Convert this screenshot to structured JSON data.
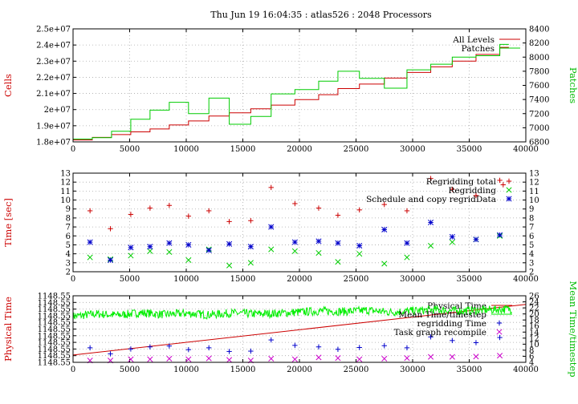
{
  "title": "Thu Jun 19 16:04:35 : atlas526 : 2048 Processors",
  "chart_data": [
    {
      "type": "line",
      "ylabel": "Cells",
      "y2label": "Patches",
      "xlim": [
        0,
        40000
      ],
      "ylim": [
        18000000,
        25000000
      ],
      "y2lim": [
        6800,
        8400
      ],
      "x_ticks": [
        "0",
        "5000",
        "10000",
        "15000",
        "20000",
        "25000",
        "30000",
        "35000",
        "40000"
      ],
      "y_ticks": [
        "1.8e+07",
        "1.9e+07",
        "2e+07",
        "2.1e+07",
        "2.2e+07",
        "2.3e+07",
        "2.4e+07",
        "2.5e+07"
      ],
      "y2_ticks": [
        "6800",
        "7000",
        "7200",
        "7400",
        "7600",
        "7800",
        "8000",
        "8200",
        "8400"
      ],
      "grid": "dotted",
      "legend": "top-right",
      "series": [
        {
          "name": "All Levels",
          "color": "#cc0000",
          "axis": "left",
          "step": true,
          "x": [
            0,
            1700,
            3400,
            5100,
            6800,
            8500,
            10200,
            12000,
            13800,
            15700,
            17500,
            19600,
            21700,
            23400,
            25300,
            27500,
            29500,
            31600,
            33500,
            35600,
            37700,
            38500
          ],
          "y": [
            18120000,
            18280000,
            18450000,
            18620000,
            18800000,
            19050000,
            19300000,
            19600000,
            19800000,
            20050000,
            20280000,
            20620000,
            20920000,
            21300000,
            21580000,
            21950000,
            22300000,
            22650000,
            23000000,
            23420000,
            23850000,
            23850000
          ]
        },
        {
          "name": "Patches",
          "color": "#00cc00",
          "axis": "right",
          "step": true,
          "x": [
            0,
            1700,
            3400,
            5100,
            6800,
            8500,
            10200,
            12000,
            13800,
            15700,
            17500,
            19600,
            21700,
            23400,
            25300,
            27500,
            29500,
            31600,
            33500,
            35600,
            37700,
            38500
          ],
          "y": [
            6840,
            6860,
            6950,
            7120,
            7250,
            7360,
            7200,
            7420,
            7050,
            7160,
            7480,
            7540,
            7660,
            7800,
            7700,
            7560,
            7820,
            7900,
            8000,
            8020,
            8180,
            8180
          ]
        }
      ]
    },
    {
      "type": "scatter",
      "ylabel": "Time [sec]",
      "xlim": [
        0,
        40000
      ],
      "ylim": [
        2,
        13
      ],
      "y2lim": [
        2,
        13
      ],
      "x_ticks": [
        "0",
        "5000",
        "10000",
        "15000",
        "20000",
        "25000",
        "30000",
        "35000",
        "40000"
      ],
      "y_ticks": [
        "2",
        "3",
        "4",
        "5",
        "6",
        "7",
        "8",
        "9",
        "10",
        "11",
        "12",
        "13"
      ],
      "y2_ticks": [
        "2",
        "3",
        "4",
        "5",
        "6",
        "7",
        "8",
        "9",
        "10",
        "11",
        "12",
        "13"
      ],
      "grid": "dotted",
      "legend": "top-right",
      "series": [
        {
          "name": "Regridding total",
          "color": "#cc0000",
          "marker": "plus",
          "x": [
            1500,
            3300,
            5100,
            6800,
            8500,
            10200,
            12000,
            13800,
            15700,
            17500,
            19600,
            21700,
            23400,
            25300,
            27500,
            29500,
            31600,
            33500,
            35600,
            37700,
            38000
          ],
          "y": [
            8.8,
            6.8,
            8.4,
            9.1,
            9.4,
            8.2,
            8.8,
            7.6,
            7.7,
            11.4,
            9.6,
            9.1,
            8.3,
            8.9,
            9.5,
            8.8,
            12.4,
            11.2,
            10.5,
            12.2,
            11.7
          ]
        },
        {
          "name": "Regridding",
          "color": "#00cc00",
          "marker": "x",
          "x": [
            1500,
            3300,
            5100,
            6800,
            8500,
            10200,
            12000,
            13800,
            15700,
            17500,
            19600,
            21700,
            23400,
            25300,
            27500,
            29500,
            31600,
            33500,
            35600,
            37700
          ],
          "y": [
            3.6,
            3.4,
            3.8,
            4.3,
            4.2,
            3.3,
            4.5,
            2.7,
            3.0,
            4.5,
            4.3,
            4.1,
            3.1,
            4.0,
            2.9,
            3.6,
            4.9,
            5.3,
            5.6,
            6.0
          ]
        },
        {
          "name": "Schedule and copy regridData",
          "color": "#0000cc",
          "marker": "star",
          "x": [
            1500,
            3300,
            5100,
            6800,
            8500,
            10200,
            12000,
            13800,
            15700,
            17500,
            19600,
            21700,
            23400,
            25300,
            27500,
            29500,
            31600,
            33500,
            35600,
            37700
          ],
          "y": [
            5.3,
            3.3,
            4.7,
            4.8,
            5.2,
            5.0,
            4.4,
            5.1,
            4.8,
            7.0,
            5.3,
            5.4,
            5.2,
            4.9,
            6.7,
            5.2,
            7.5,
            5.9,
            5.6,
            6.1
          ]
        }
      ]
    },
    {
      "type": "line",
      "ylabel": "Physical Time",
      "y2label": "Mean Time/timestep",
      "xlim": [
        0,
        40000
      ],
      "y2lim": [
        4,
        26
      ],
      "x_ticks": [
        "0",
        "5000",
        "10000",
        "15000",
        "20000",
        "25000",
        "30000",
        "35000",
        "40000"
      ],
      "y_ticks": [
        "1148.55",
        "1148.55",
        "1148.55",
        "1148.55",
        "1148.55",
        "1148.55",
        "1148.55",
        "1148.55",
        "1148.55",
        "1148.55",
        "1148.55"
      ],
      "y2_ticks": [
        "4",
        "6",
        "8",
        "10",
        "12",
        "14",
        "16",
        "18",
        "20",
        "22",
        "24",
        "26"
      ],
      "grid": "dotted",
      "legend": "top-right",
      "series": [
        {
          "name": "Physical Time",
          "color": "#cc0000",
          "axis": "left",
          "x": [
            0,
            40000
          ],
          "y_fraction": [
            0.11,
            0.87
          ]
        },
        {
          "name": "Mean Time/timestep",
          "color": "#00ee00",
          "axis": "right",
          "baseline": [
            [
              0,
              19.2
            ],
            [
              2000,
              20.0
            ],
            [
              4000,
              19.6
            ],
            [
              6000,
              20.4
            ],
            [
              8000,
              19.8
            ],
            [
              10000,
              20.2
            ],
            [
              12000,
              19.7
            ],
            [
              14000,
              20.3
            ],
            [
              16000,
              20.0
            ],
            [
              18000,
              20.2
            ],
            [
              20000,
              20.6
            ],
            [
              22000,
              21.0
            ],
            [
              24000,
              20.8
            ],
            [
              26000,
              21.2
            ],
            [
              28000,
              20.6
            ],
            [
              30000,
              21.0
            ],
            [
              32000,
              21.4
            ],
            [
              34000,
              21.0
            ],
            [
              36000,
              21.2
            ],
            [
              38000,
              21.6
            ],
            [
              40000,
              21.5
            ]
          ],
          "noise": 1.4
        },
        {
          "name": "regridding Time",
          "color": "#0000cc",
          "axis": "right",
          "marker": "plus",
          "x": [
            1500,
            3300,
            5100,
            6800,
            8500,
            10200,
            12000,
            13800,
            15700,
            17500,
            19600,
            21700,
            23400,
            25300,
            27500,
            29500,
            31600,
            33500,
            35600,
            37700
          ],
          "y": [
            8.8,
            6.8,
            8.4,
            9.1,
            9.4,
            8.2,
            8.8,
            7.6,
            7.7,
            11.4,
            9.6,
            9.1,
            8.3,
            8.9,
            9.5,
            8.8,
            12.4,
            11.2,
            10.5,
            12.2
          ]
        },
        {
          "name": "Task graph recompile",
          "color": "#cc00cc",
          "marker": "x",
          "axis": "right",
          "x": [
            1500,
            3300,
            5100,
            6800,
            8500,
            10200,
            12000,
            13800,
            15700,
            17500,
            19600,
            21700,
            23400,
            25300,
            27500,
            29500,
            31600,
            33500,
            35600,
            37700
          ],
          "y": [
            4.6,
            4.6,
            5.0,
            5.0,
            5.2,
            5.0,
            5.3,
            4.8,
            4.6,
            5.2,
            5.0,
            5.6,
            5.4,
            5.0,
            5.2,
            5.4,
            5.8,
            5.8,
            5.9,
            6.2
          ]
        }
      ]
    }
  ]
}
